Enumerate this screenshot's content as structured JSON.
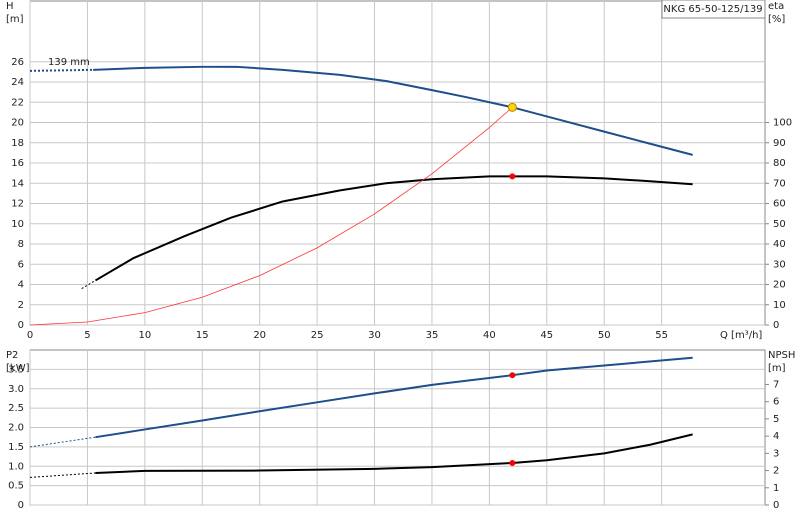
{
  "chart_data": [
    {
      "type": "line",
      "title": "NKG 65-50-125/139",
      "ylabel": [
        "H",
        "[m]"
      ],
      "y2label": [
        "eta",
        "[%]"
      ],
      "xlabel": "Q [m³/h]",
      "annotation": "139 mm",
      "xlim": [
        0,
        64
      ],
      "xticks": [
        0,
        5,
        10,
        15,
        20,
        25,
        30,
        35,
        40,
        45,
        50,
        55
      ],
      "ylim": [
        0,
        32
      ],
      "yticks": [
        0,
        2,
        4,
        6,
        8,
        10,
        12,
        14,
        16,
        18,
        20,
        22,
        24,
        26
      ],
      "y2lim": [
        0,
        160
      ],
      "y2ticks": [
        0,
        10,
        20,
        30,
        40,
        50,
        60,
        70,
        80,
        90,
        100
      ],
      "grid": true,
      "series": [
        {
          "color": "#1f4e8c",
          "width": 2,
          "dashed": true,
          "x": [
            0,
            5.5
          ],
          "values": [
            25.1,
            25.2
          ]
        },
        {
          "color": "#1f4e8c",
          "width": 2,
          "x": [
            5.5,
            10,
            15,
            18,
            22,
            27,
            31,
            35,
            38,
            42,
            46,
            50,
            54,
            57.7
          ],
          "values": [
            25.2,
            25.4,
            25.5,
            25.5,
            25.2,
            24.7,
            24.1,
            23.2,
            22.5,
            21.5,
            20.3,
            19.1,
            17.9,
            16.8
          ]
        },
        {
          "color": "#000000",
          "width": 1,
          "dashed": true,
          "axis": "y2",
          "x": [
            4.5,
            5.7
          ],
          "values": [
            18,
            22
          ]
        },
        {
          "color": "#000000",
          "width": 2,
          "axis": "y2",
          "x": [
            5.7,
            9,
            13.5,
            17.5,
            22,
            27,
            31,
            35,
            40,
            45,
            50,
            54,
            57.7
          ],
          "values": [
            22,
            33,
            44,
            53,
            61,
            66.5,
            70,
            72,
            73.4,
            73.4,
            72.4,
            71,
            69.5
          ]
        },
        {
          "color": "#ff3333",
          "width": 0.8,
          "x": [
            0,
            5,
            10,
            15,
            20,
            25,
            30,
            35,
            40,
            42
          ],
          "values": [
            0,
            0.3,
            1.22,
            2.74,
            4.88,
            7.62,
            10.97,
            14.93,
            19.5,
            21.5
          ]
        }
      ],
      "markers": [
        {
          "x": 42,
          "y": 21.5,
          "color": "#ffd700"
        },
        {
          "x": 42,
          "y": 73.4,
          "color": "#ff0000",
          "axis": "y2"
        }
      ]
    },
    {
      "type": "line",
      "ylabel": [
        "P2",
        "[kW]"
      ],
      "y2label": [
        "NPSH",
        "[m]"
      ],
      "xlim": [
        0,
        64
      ],
      "ylim": [
        0,
        4
      ],
      "yticks": [
        0,
        0.5,
        {
          "value": 1,
          "label": "1.0"
        },
        1.5,
        {
          "value": 2,
          "label": "2.0"
        },
        2.5,
        {
          "value": 3,
          "label": "3.0"
        },
        3.5
      ],
      "y2lim": [
        0,
        9
      ],
      "y2ticks": [
        0,
        1,
        2,
        3,
        4,
        5,
        6,
        7
      ],
      "grid": true,
      "series": [
        {
          "color": "#1f4e8c",
          "width": 1,
          "dashed": true,
          "x": [
            0,
            5.7
          ],
          "values": [
            1.5,
            1.75
          ]
        },
        {
          "color": "#1f4e8c",
          "width": 2,
          "x": [
            5.7,
            10,
            15,
            20,
            25,
            30,
            35,
            42,
            45,
            50,
            57.7
          ],
          "values": [
            1.75,
            1.95,
            2.18,
            2.42,
            2.65,
            2.88,
            3.1,
            3.35,
            3.47,
            3.6,
            3.8
          ]
        },
        {
          "color": "#000000",
          "width": 1,
          "dashed": true,
          "axis": "y2",
          "x": [
            0,
            5.7
          ],
          "values": [
            1.6,
            1.86
          ]
        },
        {
          "color": "#000000",
          "width": 2,
          "axis": "y2",
          "x": [
            5.7,
            10,
            20,
            30,
            35,
            42,
            45,
            50,
            54,
            57.7
          ],
          "values": [
            1.86,
            1.98,
            2.0,
            2.1,
            2.2,
            2.44,
            2.6,
            3.0,
            3.5,
            4.1
          ]
        }
      ],
      "markers": [
        {
          "x": 42,
          "y": 3.35,
          "color": "#ff0000"
        },
        {
          "x": 42,
          "y": 2.44,
          "color": "#ff0000",
          "axis": "y2"
        }
      ]
    }
  ]
}
